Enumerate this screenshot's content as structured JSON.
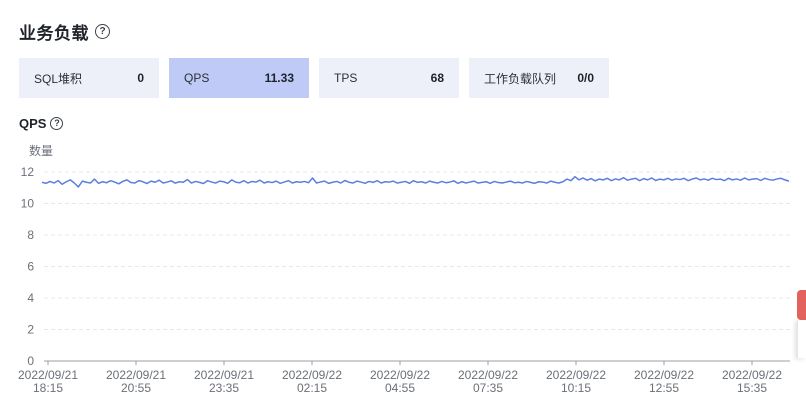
{
  "section": {
    "title": "业务负载",
    "help_icon": "question-circle-icon"
  },
  "cards": [
    {
      "label": "SQL堆积",
      "value": "0",
      "active": false
    },
    {
      "label": "QPS",
      "value": "11.33",
      "active": true
    },
    {
      "label": "TPS",
      "value": "68",
      "active": false
    },
    {
      "label": "工作负载队列",
      "value": "0/0",
      "active": false
    }
  ],
  "chart_title": {
    "title": "QPS",
    "help_icon": "question-circle-icon"
  },
  "chart_data": {
    "type": "line",
    "title": "QPS",
    "ylabel": "数量",
    "xlabel": "",
    "ylim": [
      0,
      12
    ],
    "y_ticks": [
      0,
      2,
      4,
      6,
      8,
      10,
      12
    ],
    "x_ticks": [
      [
        "2022/09/21",
        "18:15"
      ],
      [
        "2022/09/21",
        "20:55"
      ],
      [
        "2022/09/21",
        "23:35"
      ],
      [
        "2022/09/22",
        "02:15"
      ],
      [
        "2022/09/22",
        "04:55"
      ],
      [
        "2022/09/22",
        "07:35"
      ],
      [
        "2022/09/22",
        "10:15"
      ],
      [
        "2022/09/22",
        "12:55"
      ],
      [
        "2022/09/22",
        "15:35"
      ]
    ],
    "x_range": [
      "2022/09/21 18:15",
      "2022/09/22 17:00"
    ],
    "grid": true,
    "line_color": "#5b7fe0",
    "series": [
      {
        "values": [
          11.35,
          11.28,
          11.4,
          11.3,
          11.45,
          11.22,
          11.38,
          11.5,
          11.3,
          11.05,
          11.42,
          11.35,
          11.3,
          11.55,
          11.28,
          11.38,
          11.32,
          11.45,
          11.36,
          11.25,
          11.4,
          11.5,
          11.33,
          11.3,
          11.45,
          11.38,
          11.27,
          11.42,
          11.35,
          11.48,
          11.3,
          11.36,
          11.44,
          11.29,
          11.38,
          11.35,
          11.52,
          11.3,
          11.4,
          11.34,
          11.27,
          11.45,
          11.36,
          11.3,
          11.42,
          11.38,
          11.28,
          11.5,
          11.35,
          11.32,
          11.45,
          11.3,
          11.4,
          11.36,
          11.48,
          11.3,
          11.38,
          11.33,
          11.42,
          11.28,
          11.36,
          11.45,
          11.3,
          11.38,
          11.35,
          11.4,
          11.32,
          11.62,
          11.3,
          11.37,
          11.42,
          11.28,
          11.35,
          11.4,
          11.3,
          11.46,
          11.35,
          11.3,
          11.42,
          11.36,
          11.28,
          11.4,
          11.34,
          11.45,
          11.3,
          11.38,
          11.36,
          11.42,
          11.3,
          11.35,
          11.4,
          11.28,
          11.45,
          11.34,
          11.38,
          11.3,
          11.42,
          11.35,
          11.3,
          11.4,
          11.32,
          11.36,
          11.44,
          11.28,
          11.38,
          11.3,
          11.36,
          11.42,
          11.3,
          11.34,
          11.38,
          11.28,
          11.4,
          11.33,
          11.3,
          11.36,
          11.42,
          11.32,
          11.35,
          11.3,
          11.4,
          11.34,
          11.28,
          11.38,
          11.36,
          11.3,
          11.42,
          11.35,
          11.3,
          11.38,
          11.55,
          11.45,
          11.7,
          11.5,
          11.62,
          11.48,
          11.58,
          11.44,
          11.55,
          11.5,
          11.6,
          11.45,
          11.56,
          11.5,
          11.64,
          11.48,
          11.55,
          11.6,
          11.45,
          11.58,
          11.5,
          11.62,
          11.46,
          11.55,
          11.5,
          11.6,
          11.48,
          11.56,
          11.52,
          11.6,
          11.45,
          11.55,
          11.62,
          11.5,
          11.56,
          11.48,
          11.6,
          11.52,
          11.55,
          11.45,
          11.6,
          11.5,
          11.56,
          11.48,
          11.62,
          11.5,
          11.55,
          11.58,
          11.46,
          11.6,
          11.52,
          11.48,
          11.56,
          11.6,
          11.5,
          11.42
        ]
      }
    ]
  }
}
